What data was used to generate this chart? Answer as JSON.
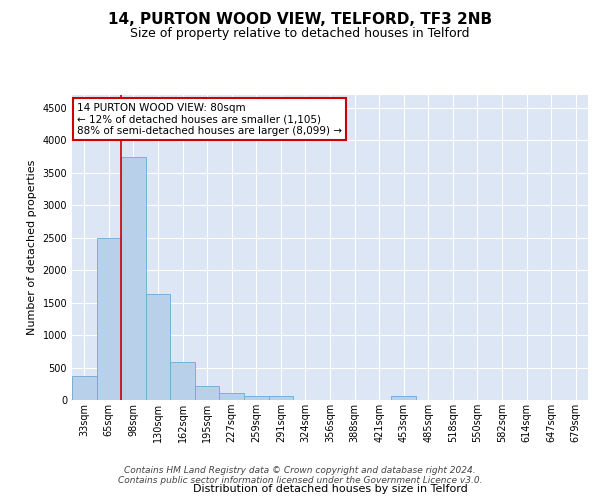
{
  "title1": "14, PURTON WOOD VIEW, TELFORD, TF3 2NB",
  "title2": "Size of property relative to detached houses in Telford",
  "xlabel": "Distribution of detached houses by size in Telford",
  "ylabel": "Number of detached properties",
  "footnote_line1": "Contains HM Land Registry data © Crown copyright and database right 2024.",
  "footnote_line2": "Contains public sector information licensed under the Government Licence v3.0.",
  "categories": [
    "33sqm",
    "65sqm",
    "98sqm",
    "130sqm",
    "162sqm",
    "195sqm",
    "227sqm",
    "259sqm",
    "291sqm",
    "324sqm",
    "356sqm",
    "388sqm",
    "421sqm",
    "453sqm",
    "485sqm",
    "518sqm",
    "550sqm",
    "582sqm",
    "614sqm",
    "647sqm",
    "679sqm"
  ],
  "values": [
    370,
    2500,
    3750,
    1640,
    590,
    220,
    105,
    60,
    55,
    0,
    0,
    0,
    0,
    55,
    0,
    0,
    0,
    0,
    0,
    0,
    0
  ],
  "bar_color": "#b8d0ea",
  "bar_edge_color": "#6aaad4",
  "property_line_x": 1.5,
  "annotation_text": "14 PURTON WOOD VIEW: 80sqm\n← 12% of detached houses are smaller (1,105)\n88% of semi-detached houses are larger (8,099) →",
  "annotation_box_color": "#ffffff",
  "annotation_box_edge": "#cc0000",
  "red_line_color": "#cc0000",
  "ylim": [
    0,
    4700
  ],
  "yticks": [
    0,
    500,
    1000,
    1500,
    2000,
    2500,
    3000,
    3500,
    4000,
    4500
  ],
  "bg_color": "#dce6f5",
  "grid_color": "#ffffff",
  "title1_fontsize": 11,
  "title2_fontsize": 9,
  "axis_label_fontsize": 8,
  "tick_fontsize": 7,
  "footnote_fontsize": 6.5,
  "annot_fontsize": 7.5
}
